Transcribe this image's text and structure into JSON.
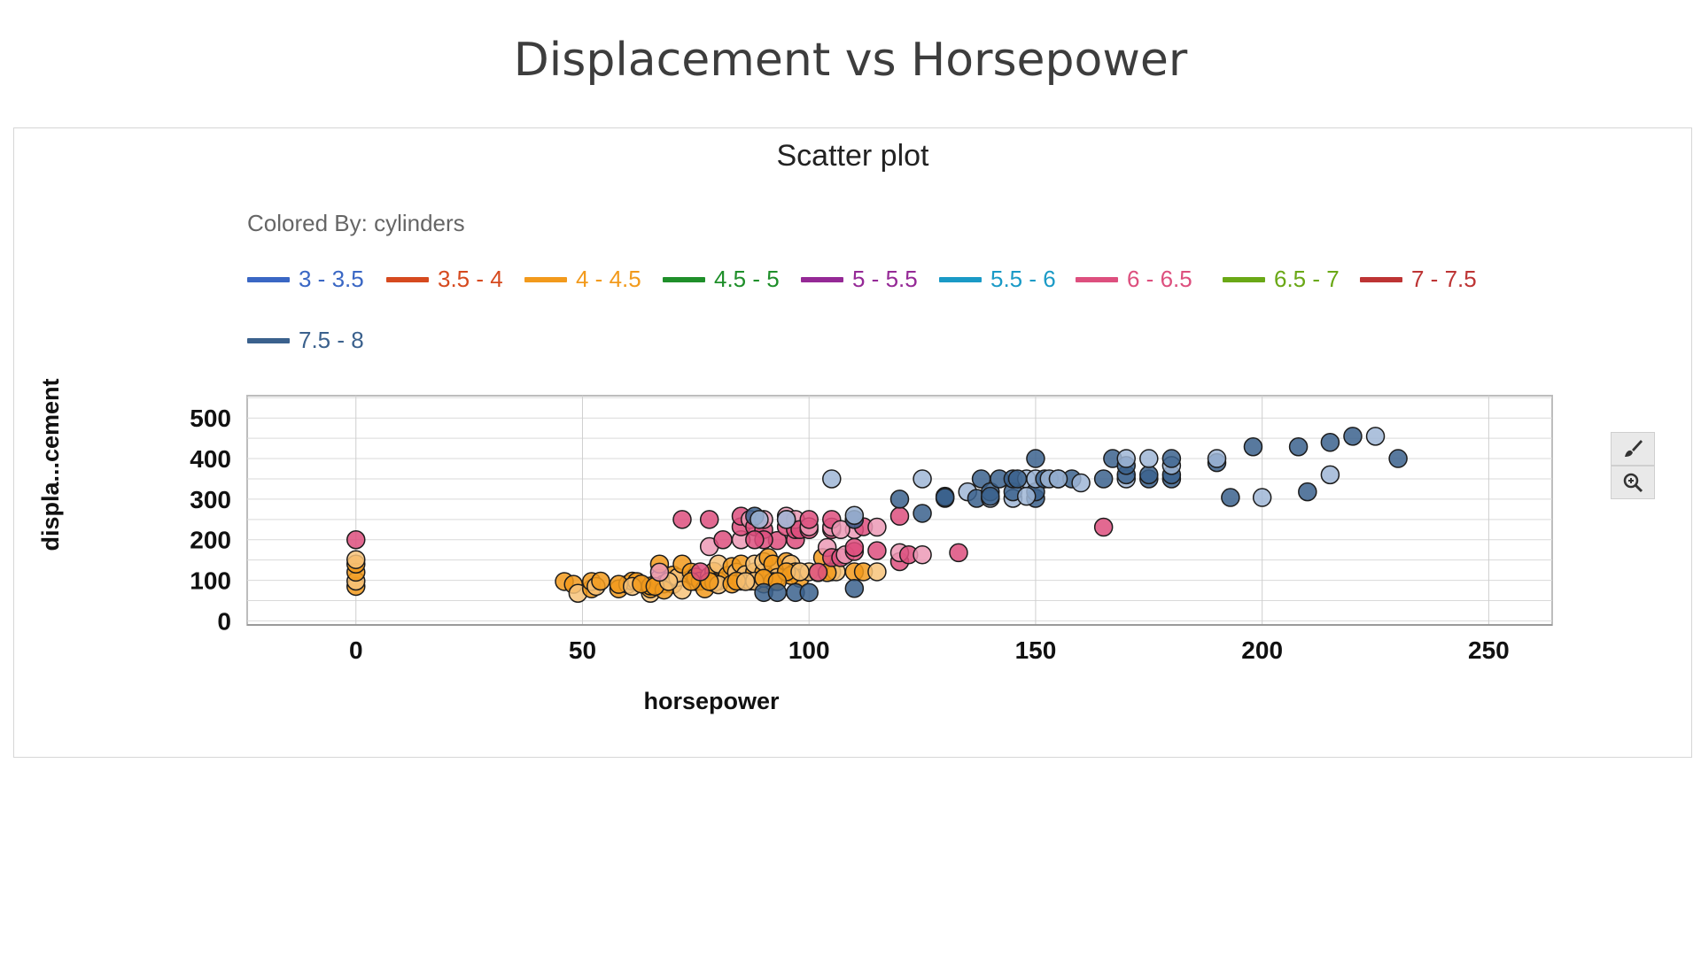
{
  "page": {
    "title": "Displacement vs Horsepower"
  },
  "toolbar": {
    "brush_icon": "brush-icon",
    "zoom_icon": "zoom-in-icon"
  },
  "chart_data": {
    "type": "scatter",
    "title": "Scatter plot",
    "colored_by_label": "Colored By: cylinders",
    "xlabel": "horsepower",
    "ylabel": "displa...cement",
    "xlim": [
      -24,
      264
    ],
    "ylim": [
      -10,
      555
    ],
    "x_ticks": [
      0,
      50,
      100,
      150,
      200,
      250
    ],
    "y_ticks": [
      0,
      100,
      200,
      300,
      400,
      500
    ],
    "grid": true,
    "legend_position": "top",
    "legend": [
      {
        "label": "3 - 3.5",
        "color": "#3a67c4"
      },
      {
        "label": "3.5 - 4",
        "color": "#d64a1f"
      },
      {
        "label": "4 - 4.5",
        "color": "#f29a1c"
      },
      {
        "label": "4.5 - 5",
        "color": "#1f8f2a"
      },
      {
        "label": "5 - 5.5",
        "color": "#952996"
      },
      {
        "label": "5.5 - 6",
        "color": "#1a9ac6"
      },
      {
        "label": "6 - 6.5",
        "color": "#dd4f7e"
      },
      {
        "label": "6.5 - 7",
        "color": "#6aa816"
      },
      {
        "label": "7 - 7.5",
        "color": "#bd3434"
      },
      {
        "label": "7.5 - 8",
        "color": "#3b618d"
      }
    ],
    "series": [
      {
        "name": "4 - 4.5",
        "color": "#f29a1c",
        "points": [
          [
            0,
            85
          ],
          [
            0,
            98
          ],
          [
            0,
            120
          ],
          [
            0,
            140
          ],
          [
            0,
            151
          ],
          [
            46,
            97
          ],
          [
            48,
            90
          ],
          [
            49,
            68
          ],
          [
            52,
            79
          ],
          [
            52,
            97
          ],
          [
            53,
            85
          ],
          [
            54,
            98
          ],
          [
            58,
            79
          ],
          [
            60,
            90
          ],
          [
            61,
            98
          ],
          [
            62,
            97
          ],
          [
            65,
            68
          ],
          [
            65,
            79
          ],
          [
            67,
            97
          ],
          [
            67,
            105
          ],
          [
            67,
            140
          ],
          [
            68,
            91
          ],
          [
            69,
            98
          ],
          [
            70,
            90
          ],
          [
            70,
            113
          ],
          [
            71,
            107
          ],
          [
            72,
            140
          ],
          [
            74,
            120
          ],
          [
            75,
            97
          ],
          [
            75,
            108
          ],
          [
            76,
            98
          ],
          [
            78,
            110
          ],
          [
            79,
            122
          ],
          [
            80,
            98
          ],
          [
            80,
            140
          ],
          [
            82,
            112
          ],
          [
            83,
            134
          ],
          [
            84,
            120
          ],
          [
            85,
            98
          ],
          [
            85,
            140
          ],
          [
            86,
            114
          ],
          [
            87,
            98
          ],
          [
            88,
            121
          ],
          [
            88,
            140
          ],
          [
            90,
            91
          ],
          [
            90,
            119
          ],
          [
            90,
            146
          ],
          [
            91,
            156
          ],
          [
            92,
            140
          ],
          [
            93,
            107
          ],
          [
            95,
            119
          ],
          [
            95,
            146
          ],
          [
            96,
            140
          ],
          [
            97,
            121
          ],
          [
            98,
            105
          ],
          [
            100,
            121
          ],
          [
            103,
            156
          ],
          [
            105,
            121
          ],
          [
            106,
            121
          ],
          [
            110,
            121
          ],
          [
            112,
            121
          ],
          [
            115,
            121
          ],
          [
            65,
            86
          ],
          [
            68,
            76
          ],
          [
            72,
            76
          ],
          [
            77,
            79
          ],
          [
            79,
            94
          ],
          [
            80,
            89
          ],
          [
            83,
            91
          ],
          [
            84,
            98
          ],
          [
            88,
            98
          ],
          [
            92,
            97
          ],
          [
            58,
            90
          ],
          [
            61,
            85
          ],
          [
            63,
            91
          ],
          [
            66,
            85
          ],
          [
            69,
            97
          ],
          [
            74,
            97
          ],
          [
            78,
            97
          ],
          [
            86,
            97
          ],
          [
            90,
            105
          ],
          [
            96,
            112
          ],
          [
            102,
            119
          ],
          [
            104,
            119
          ],
          [
            95,
            121
          ],
          [
            98,
            121
          ],
          [
            93,
            97
          ]
        ]
      },
      {
        "name": "6 - 6.5",
        "color": "#dd4f7e",
        "points": [
          [
            0,
            200
          ],
          [
            67,
            120
          ],
          [
            72,
            250
          ],
          [
            76,
            121
          ],
          [
            78,
            183
          ],
          [
            78,
            250
          ],
          [
            81,
            200
          ],
          [
            85,
            200
          ],
          [
            85,
            232
          ],
          [
            85,
            258
          ],
          [
            87,
            250
          ],
          [
            88,
            232
          ],
          [
            90,
            225
          ],
          [
            90,
            250
          ],
          [
            93,
            198
          ],
          [
            95,
            232
          ],
          [
            95,
            258
          ],
          [
            97,
            200
          ],
          [
            97,
            225
          ],
          [
            97,
            250
          ],
          [
            98,
            225
          ],
          [
            100,
            225
          ],
          [
            100,
            232
          ],
          [
            100,
            250
          ],
          [
            102,
            120
          ],
          [
            104,
            181
          ],
          [
            105,
            156
          ],
          [
            105,
            225
          ],
          [
            105,
            231
          ],
          [
            105,
            250
          ],
          [
            107,
            156
          ],
          [
            108,
            163
          ],
          [
            110,
            171
          ],
          [
            110,
            181
          ],
          [
            110,
            225
          ],
          [
            110,
            250
          ],
          [
            112,
            232
          ],
          [
            115,
            231
          ],
          [
            115,
            173
          ],
          [
            120,
            146
          ],
          [
            120,
            168
          ],
          [
            120,
            258
          ],
          [
            122,
            163
          ],
          [
            125,
            163
          ],
          [
            133,
            168
          ],
          [
            165,
            231
          ],
          [
            107,
            225
          ],
          [
            90,
            200
          ],
          [
            88,
            200
          ],
          [
            95,
            250
          ]
        ]
      },
      {
        "name": "7.5 - 8",
        "color": "#3b618d",
        "points": [
          [
            88,
            258
          ],
          [
            89,
            250
          ],
          [
            90,
            70
          ],
          [
            93,
            70
          ],
          [
            95,
            250
          ],
          [
            97,
            70
          ],
          [
            100,
            70
          ],
          [
            105,
            350
          ],
          [
            110,
            80
          ],
          [
            110,
            250
          ],
          [
            110,
            260
          ],
          [
            120,
            300
          ],
          [
            125,
            265
          ],
          [
            125,
            350
          ],
          [
            130,
            302
          ],
          [
            130,
            307
          ],
          [
            135,
            318
          ],
          [
            137,
            302
          ],
          [
            138,
            350
          ],
          [
            140,
            302
          ],
          [
            140,
            318
          ],
          [
            142,
            350
          ],
          [
            145,
            302
          ],
          [
            145,
            318
          ],
          [
            145,
            350
          ],
          [
            148,
            350
          ],
          [
            150,
            302
          ],
          [
            150,
            318
          ],
          [
            150,
            350
          ],
          [
            150,
            400
          ],
          [
            152,
            350
          ],
          [
            153,
            350
          ],
          [
            155,
            350
          ],
          [
            158,
            350
          ],
          [
            160,
            340
          ],
          [
            165,
            350
          ],
          [
            167,
            400
          ],
          [
            170,
            350
          ],
          [
            170,
            360
          ],
          [
            170,
            383
          ],
          [
            170,
            400
          ],
          [
            175,
            350
          ],
          [
            175,
            360
          ],
          [
            175,
            400
          ],
          [
            180,
            350
          ],
          [
            180,
            360
          ],
          [
            180,
            383
          ],
          [
            180,
            400
          ],
          [
            190,
            390
          ],
          [
            190,
            400
          ],
          [
            193,
            304
          ],
          [
            198,
            429
          ],
          [
            200,
            304
          ],
          [
            208,
            429
          ],
          [
            210,
            318
          ],
          [
            215,
            360
          ],
          [
            215,
            440
          ],
          [
            220,
            455
          ],
          [
            225,
            455
          ],
          [
            230,
            400
          ],
          [
            140,
            307
          ],
          [
            148,
            307
          ],
          [
            130,
            304
          ],
          [
            146,
            350
          ],
          [
            155,
            350
          ]
        ]
      }
    ]
  }
}
